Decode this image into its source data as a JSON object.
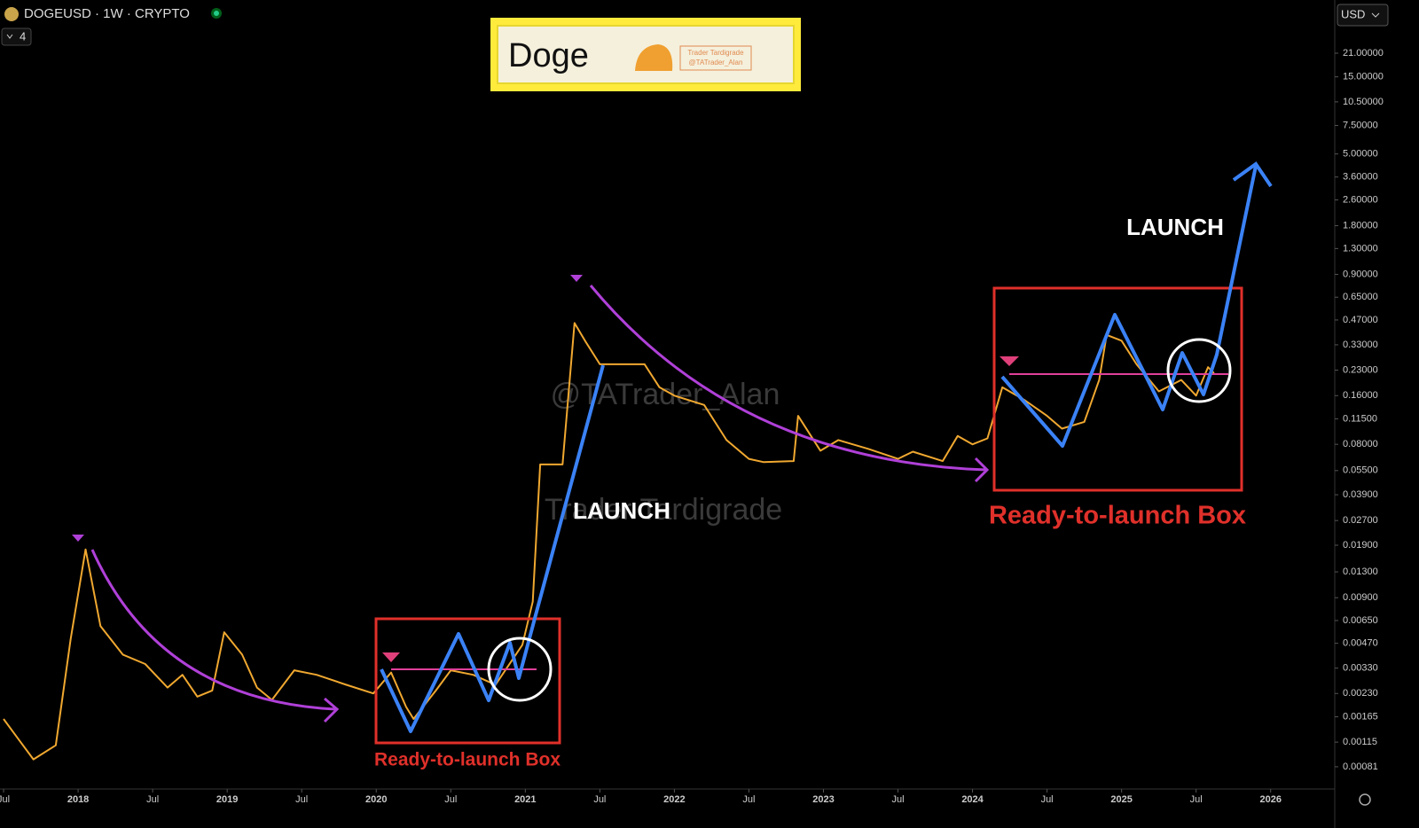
{
  "chart_data": {
    "type": "line",
    "symbol": "DOGEUSD · 1W · CRYPTO",
    "indicator_count": "4",
    "currency": "USD",
    "logo": {
      "title": "Doge",
      "brand": "Trader Tardigrade",
      "handle": "@TATrader_Alan"
    },
    "watermarks": [
      "@TATrader_Alan",
      "Trader Tardigrade"
    ],
    "annotations": [
      "LAUNCH",
      "LAUNCH",
      "Ready-to-launch Box",
      "Ready-to-launch Box"
    ],
    "log_scale": true,
    "color": "#f0a830",
    "x": [
      2017.5,
      2017.6,
      2017.7,
      2017.85,
      2017.95,
      2018.05,
      2018.15,
      2018.3,
      2018.45,
      2018.6,
      2018.7,
      2018.8,
      2018.9,
      2018.98,
      2019.1,
      2019.2,
      2019.3,
      2019.45,
      2019.6,
      2019.8,
      2019.98,
      2020.1,
      2020.2,
      2020.25,
      2020.4,
      2020.5,
      2020.65,
      2020.8,
      2020.98,
      2021.05,
      2021.1,
      2021.25,
      2021.33,
      2021.4,
      2021.5,
      2021.6,
      2021.8,
      2021.9,
      2022.0,
      2022.2,
      2022.35,
      2022.5,
      2022.6,
      2022.8,
      2022.83,
      2022.98,
      2023.1,
      2023.3,
      2023.5,
      2023.6,
      2023.8,
      2023.9,
      2024.0,
      2024.1,
      2024.2,
      2024.35,
      2024.5,
      2024.6,
      2024.75,
      2024.85,
      2024.9,
      2025.0,
      2025.1,
      2025.25,
      2025.4,
      2025.5,
      2025.58,
      2025.62
    ],
    "values": [
      0.0016,
      0.0012,
      0.0009,
      0.0011,
      0.005,
      0.0179,
      0.006,
      0.004,
      0.0035,
      0.0025,
      0.003,
      0.0022,
      0.0024,
      0.0055,
      0.004,
      0.0025,
      0.0021,
      0.0032,
      0.003,
      0.0026,
      0.0023,
      0.0031,
      0.0019,
      0.0016,
      0.0024,
      0.0032,
      0.003,
      0.0026,
      0.0046,
      0.0085,
      0.06,
      0.06,
      0.45,
      0.35,
      0.25,
      0.25,
      0.25,
      0.18,
      0.16,
      0.14,
      0.085,
      0.065,
      0.062,
      0.063,
      0.12,
      0.073,
      0.085,
      0.075,
      0.065,
      0.072,
      0.063,
      0.09,
      0.08,
      0.087,
      0.18,
      0.15,
      0.12,
      0.1,
      0.11,
      0.2,
      0.38,
      0.35,
      0.25,
      0.17,
      0.2,
      0.16,
      0.24,
      0.22
    ],
    "xlim": [
      2017.476,
      2026.43
    ],
    "ylim": [
      0.00059,
      44.8
    ],
    "xticks": [
      {
        "value": 2017.5,
        "label": "Jul"
      },
      2018,
      {
        "value": 2018.5,
        "label": "Jul"
      },
      2019,
      {
        "value": 2019.5,
        "label": "Jul"
      },
      2020,
      {
        "value": 2020.5,
        "label": "Jul"
      },
      2021,
      {
        "value": 2021.5,
        "label": "Jul"
      },
      2022,
      {
        "value": 2022.5,
        "label": "Jul"
      },
      2023,
      {
        "value": 2023.5,
        "label": "Jul"
      },
      2024,
      {
        "value": 2024.5,
        "label": "Jul"
      },
      2025,
      {
        "value": 2025.5,
        "label": "Jul"
      },
      2026
    ],
    "yticks": [
      {
        "value": 21,
        "label": "21.00000"
      },
      {
        "value": 15,
        "label": "15.00000"
      },
      {
        "value": 10.5,
        "label": "10.50000"
      },
      {
        "value": 7.5,
        "label": "7.50000"
      },
      {
        "value": 5,
        "label": "5.00000"
      },
      {
        "value": 3.6,
        "label": "3.60000"
      },
      {
        "value": 2.6,
        "label": "2.60000"
      },
      {
        "value": 1.8,
        "label": "1.80000"
      },
      {
        "value": 1.3,
        "label": "1.30000"
      },
      {
        "value": 0.9,
        "label": "0.90000"
      },
      {
        "value": 0.65,
        "label": "0.65000"
      },
      {
        "value": 0.47,
        "label": "0.47000"
      },
      {
        "value": 0.33,
        "label": "0.33000"
      },
      {
        "value": 0.23,
        "label": "0.23000"
      },
      {
        "value": 0.16,
        "label": "0.16000"
      },
      {
        "value": 0.115,
        "label": "0.11500"
      },
      {
        "value": 0.08,
        "label": "0.08000"
      },
      {
        "value": 0.055,
        "label": "0.05500"
      },
      {
        "value": 0.039,
        "label": "0.03900"
      },
      {
        "value": 0.027,
        "label": "0.02700"
      },
      {
        "value": 0.019,
        "label": "0.01900"
      },
      {
        "value": 0.013,
        "label": "0.01300"
      },
      {
        "value": 0.009,
        "label": "0.00900"
      },
      {
        "value": 0.0065,
        "label": "0.00650"
      },
      {
        "value": 0.0047,
        "label": "0.00470"
      },
      {
        "value": 0.0033,
        "label": "0.00330"
      },
      {
        "value": 0.0023,
        "label": "0.00230"
      },
      {
        "value": 0.00165,
        "label": "0.00165"
      },
      {
        "value": 0.00115,
        "label": "0.00115"
      },
      {
        "value": 0.00081,
        "label": "0.00081"
      }
    ]
  }
}
